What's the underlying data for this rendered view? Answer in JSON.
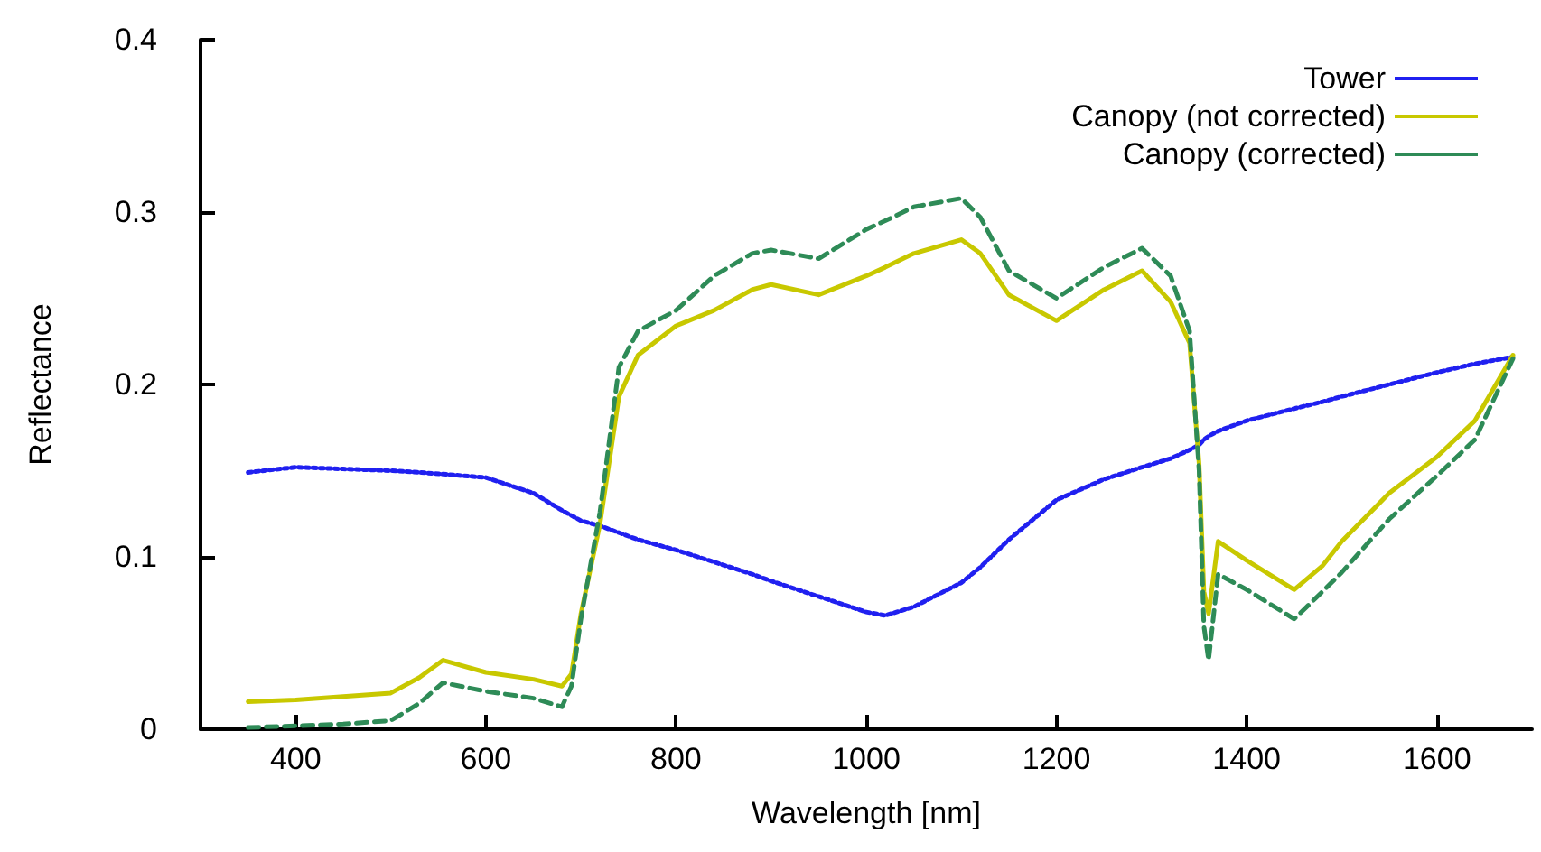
{
  "chart_data": {
    "type": "line",
    "xlabel": "Wavelength [nm]",
    "ylabel": "Reflectance",
    "x": [
      350,
      400,
      450,
      500,
      530,
      555,
      600,
      650,
      680,
      690,
      700,
      720,
      740,
      760,
      800,
      840,
      880,
      900,
      950,
      1000,
      1020,
      1050,
      1100,
      1120,
      1150,
      1200,
      1250,
      1290,
      1320,
      1340,
      1350,
      1355,
      1360,
      1370,
      1400,
      1450,
      1480,
      1500,
      1550,
      1600,
      1640,
      1680
    ],
    "series": [
      {
        "name": "Tower",
        "color": "#2020f0",
        "line_style": "dotted",
        "values": [
          0.149,
          0.152,
          0.151,
          0.15,
          0.149,
          0.148,
          0.146,
          0.137,
          0.127,
          0.124,
          0.121,
          0.118,
          0.114,
          0.11,
          0.104,
          0.097,
          0.09,
          0.086,
          0.077,
          0.068,
          0.066,
          0.071,
          0.085,
          0.094,
          0.11,
          0.133,
          0.145,
          0.152,
          0.157,
          0.162,
          0.165,
          0.168,
          0.17,
          0.173,
          0.179,
          0.186,
          0.19,
          0.193,
          0.2,
          0.207,
          0.212,
          0.216
        ]
      },
      {
        "name": "Canopy (not corrected)",
        "color": "#c8c800",
        "line_style": "solid",
        "values": [
          0.016,
          0.017,
          0.019,
          0.021,
          0.03,
          0.04,
          0.033,
          0.029,
          0.025,
          0.032,
          0.067,
          0.119,
          0.193,
          0.217,
          0.234,
          0.243,
          0.255,
          0.258,
          0.252,
          0.263,
          0.268,
          0.276,
          0.284,
          0.276,
          0.252,
          0.237,
          0.255,
          0.266,
          0.248,
          0.224,
          0.154,
          0.08,
          0.067,
          0.109,
          0.098,
          0.081,
          0.095,
          0.109,
          0.137,
          0.158,
          0.179,
          0.217
        ]
      },
      {
        "name": "Canopy (corrected)",
        "color": "#2e8b57",
        "line_style": "dashed",
        "values": [
          0.001,
          0.002,
          0.003,
          0.005,
          0.015,
          0.027,
          0.022,
          0.018,
          0.013,
          0.025,
          0.064,
          0.126,
          0.21,
          0.231,
          0.243,
          0.263,
          0.276,
          0.278,
          0.273,
          0.29,
          0.295,
          0.303,
          0.308,
          0.297,
          0.266,
          0.25,
          0.268,
          0.279,
          0.263,
          0.231,
          0.15,
          0.06,
          0.04,
          0.09,
          0.081,
          0.064,
          0.08,
          0.091,
          0.122,
          0.147,
          0.168,
          0.215
        ]
      }
    ],
    "xlim": [
      300,
      1700
    ],
    "xticks": [
      400,
      600,
      800,
      1000,
      1200,
      1400,
      1600
    ],
    "ylim": [
      0,
      0.4
    ],
    "yticks": [
      0,
      0.1,
      0.2,
      0.3,
      0.4
    ],
    "grid": false,
    "legend": "top right",
    "marker": "none"
  }
}
